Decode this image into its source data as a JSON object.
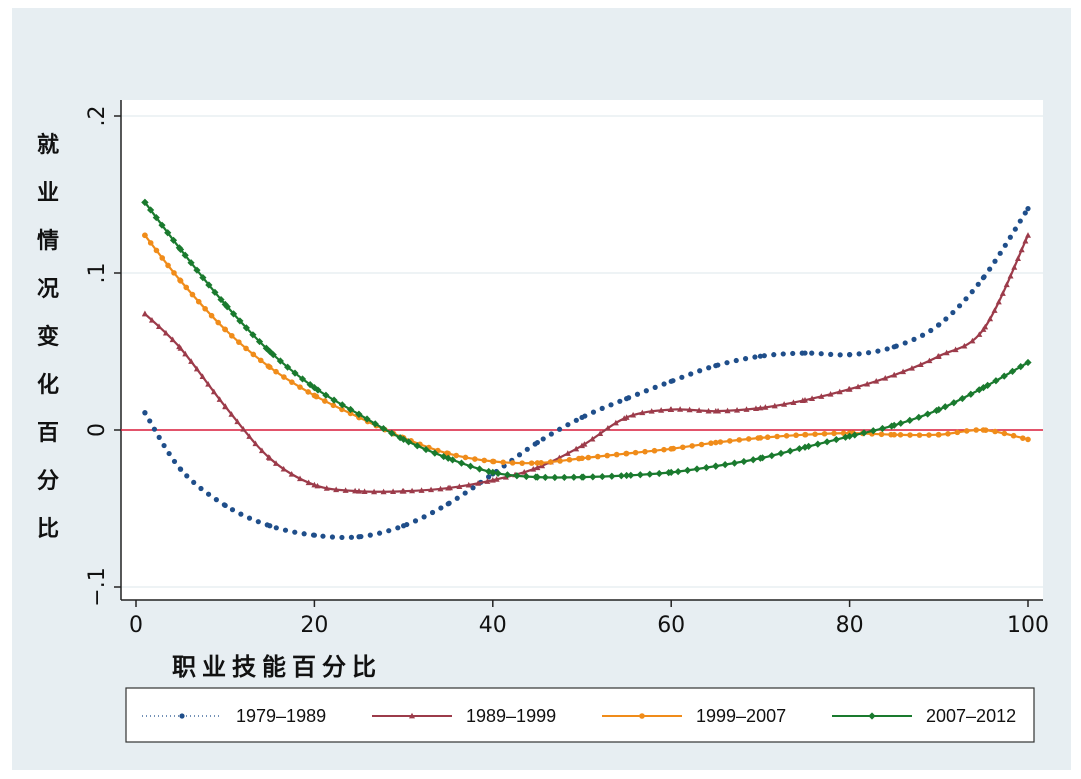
{
  "chart_data": {
    "type": "line",
    "title": "",
    "xlabel": "职业技能百分比",
    "ylabel": "就业情况变化百分比",
    "xlim": [
      0,
      100
    ],
    "ylim": [
      -0.1,
      0.2
    ],
    "x_ticks": [
      0,
      20,
      40,
      60,
      80,
      100
    ],
    "x_tick_labels": [
      "0",
      "20",
      "40",
      "60",
      "80",
      "100"
    ],
    "y_ticks": [
      -0.1,
      0,
      0.1,
      0.2
    ],
    "y_tick_labels": [
      "−.1",
      "0",
      ".1",
      ".2"
    ],
    "reference_line": {
      "y": 0,
      "color": "#d81b3a"
    },
    "grid": true,
    "legend_position": "bottom",
    "series": [
      {
        "name": "1979–1989",
        "color": "#1f4e8a",
        "style": "dotted",
        "x": [
          1,
          5,
          10,
          15,
          20,
          25,
          30,
          35,
          40,
          45,
          50,
          55,
          60,
          65,
          70,
          75,
          80,
          85,
          90,
          95,
          100
        ],
        "y": [
          0.011,
          -0.025,
          -0.048,
          -0.061,
          -0.067,
          -0.068,
          -0.061,
          -0.047,
          -0.028,
          -0.008,
          0.008,
          0.02,
          0.031,
          0.041,
          0.047,
          0.049,
          0.048,
          0.053,
          0.067,
          0.097,
          0.141
        ]
      },
      {
        "name": "1989–1999",
        "color": "#9c3b4a",
        "style": "line-triangle",
        "x": [
          1,
          5,
          10,
          15,
          20,
          25,
          30,
          35,
          40,
          45,
          50,
          55,
          60,
          65,
          70,
          75,
          80,
          85,
          90,
          95,
          100
        ],
        "y": [
          0.074,
          0.052,
          0.015,
          -0.018,
          -0.035,
          -0.039,
          -0.039,
          -0.037,
          -0.032,
          -0.024,
          -0.01,
          0.008,
          0.013,
          0.012,
          0.014,
          0.019,
          0.026,
          0.035,
          0.047,
          0.064,
          0.124
        ]
      },
      {
        "name": "1999–2007",
        "color": "#f08c1a",
        "style": "line-dot",
        "x": [
          1,
          5,
          10,
          15,
          20,
          25,
          30,
          35,
          40,
          45,
          50,
          55,
          60,
          65,
          70,
          75,
          80,
          85,
          90,
          95,
          100
        ],
        "y": [
          0.124,
          0.095,
          0.064,
          0.04,
          0.022,
          0.008,
          -0.005,
          -0.015,
          -0.02,
          -0.021,
          -0.018,
          -0.015,
          -0.012,
          -0.008,
          -0.005,
          -0.003,
          -0.002,
          -0.003,
          -0.003,
          0.0,
          -0.006
        ]
      },
      {
        "name": "2007–2012",
        "color": "#1a7a2e",
        "style": "line-diamond",
        "x": [
          1,
          5,
          10,
          15,
          20,
          25,
          30,
          35,
          40,
          45,
          50,
          55,
          60,
          65,
          70,
          75,
          80,
          85,
          90,
          95,
          100
        ],
        "y": [
          0.145,
          0.115,
          0.08,
          0.05,
          0.027,
          0.01,
          -0.006,
          -0.018,
          -0.027,
          -0.03,
          -0.03,
          -0.029,
          -0.027,
          -0.023,
          -0.018,
          -0.011,
          -0.004,
          0.003,
          0.013,
          0.027,
          0.043
        ]
      }
    ]
  }
}
